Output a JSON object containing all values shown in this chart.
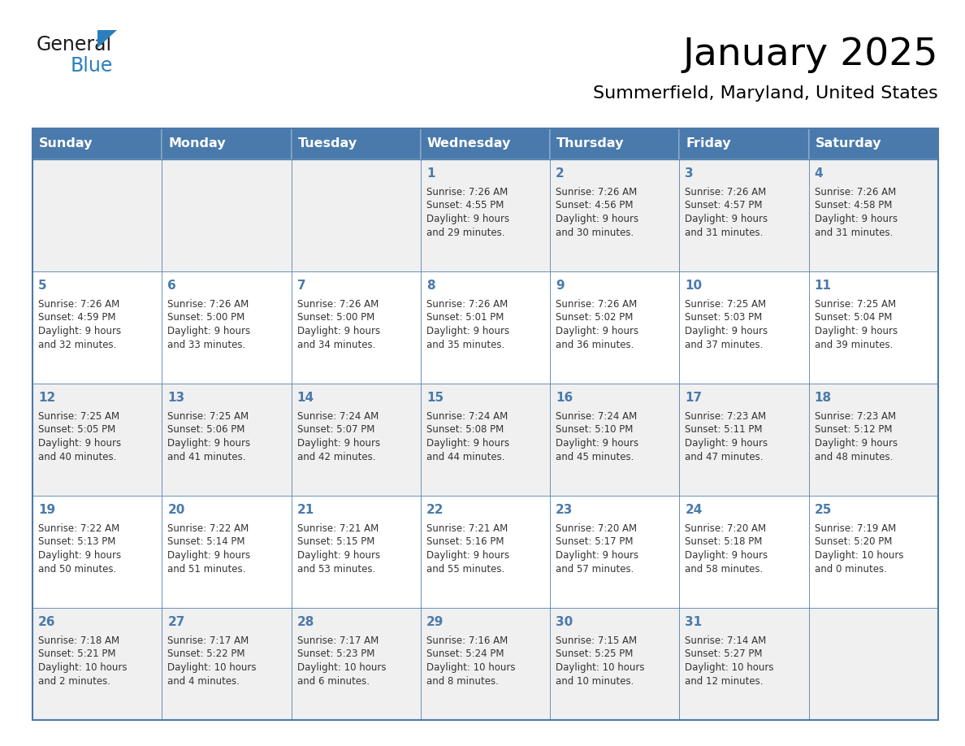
{
  "title": "January 2025",
  "subtitle": "Summerfield, Maryland, United States",
  "days_of_week": [
    "Sunday",
    "Monday",
    "Tuesday",
    "Wednesday",
    "Thursday",
    "Friday",
    "Saturday"
  ],
  "header_bg": "#4A7AAC",
  "header_text": "#FFFFFF",
  "odd_row_bg": "#F0F0F0",
  "even_row_bg": "#FFFFFF",
  "border_color": "#4A7AAC",
  "day_number_color": "#4A7AAC",
  "text_color": "#333333",
  "calendar_data": [
    [
      null,
      null,
      null,
      {
        "day": 1,
        "sunrise": "7:26 AM",
        "sunset": "4:55 PM",
        "daylight": "9 hours and 29 minutes."
      },
      {
        "day": 2,
        "sunrise": "7:26 AM",
        "sunset": "4:56 PM",
        "daylight": "9 hours and 30 minutes."
      },
      {
        "day": 3,
        "sunrise": "7:26 AM",
        "sunset": "4:57 PM",
        "daylight": "9 hours and 31 minutes."
      },
      {
        "day": 4,
        "sunrise": "7:26 AM",
        "sunset": "4:58 PM",
        "daylight": "9 hours and 31 minutes."
      }
    ],
    [
      {
        "day": 5,
        "sunrise": "7:26 AM",
        "sunset": "4:59 PM",
        "daylight": "9 hours and 32 minutes."
      },
      {
        "day": 6,
        "sunrise": "7:26 AM",
        "sunset": "5:00 PM",
        "daylight": "9 hours and 33 minutes."
      },
      {
        "day": 7,
        "sunrise": "7:26 AM",
        "sunset": "5:00 PM",
        "daylight": "9 hours and 34 minutes."
      },
      {
        "day": 8,
        "sunrise": "7:26 AM",
        "sunset": "5:01 PM",
        "daylight": "9 hours and 35 minutes."
      },
      {
        "day": 9,
        "sunrise": "7:26 AM",
        "sunset": "5:02 PM",
        "daylight": "9 hours and 36 minutes."
      },
      {
        "day": 10,
        "sunrise": "7:25 AM",
        "sunset": "5:03 PM",
        "daylight": "9 hours and 37 minutes."
      },
      {
        "day": 11,
        "sunrise": "7:25 AM",
        "sunset": "5:04 PM",
        "daylight": "9 hours and 39 minutes."
      }
    ],
    [
      {
        "day": 12,
        "sunrise": "7:25 AM",
        "sunset": "5:05 PM",
        "daylight": "9 hours and 40 minutes."
      },
      {
        "day": 13,
        "sunrise": "7:25 AM",
        "sunset": "5:06 PM",
        "daylight": "9 hours and 41 minutes."
      },
      {
        "day": 14,
        "sunrise": "7:24 AM",
        "sunset": "5:07 PM",
        "daylight": "9 hours and 42 minutes."
      },
      {
        "day": 15,
        "sunrise": "7:24 AM",
        "sunset": "5:08 PM",
        "daylight": "9 hours and 44 minutes."
      },
      {
        "day": 16,
        "sunrise": "7:24 AM",
        "sunset": "5:10 PM",
        "daylight": "9 hours and 45 minutes."
      },
      {
        "day": 17,
        "sunrise": "7:23 AM",
        "sunset": "5:11 PM",
        "daylight": "9 hours and 47 minutes."
      },
      {
        "day": 18,
        "sunrise": "7:23 AM",
        "sunset": "5:12 PM",
        "daylight": "9 hours and 48 minutes."
      }
    ],
    [
      {
        "day": 19,
        "sunrise": "7:22 AM",
        "sunset": "5:13 PM",
        "daylight": "9 hours and 50 minutes."
      },
      {
        "day": 20,
        "sunrise": "7:22 AM",
        "sunset": "5:14 PM",
        "daylight": "9 hours and 51 minutes."
      },
      {
        "day": 21,
        "sunrise": "7:21 AM",
        "sunset": "5:15 PM",
        "daylight": "9 hours and 53 minutes."
      },
      {
        "day": 22,
        "sunrise": "7:21 AM",
        "sunset": "5:16 PM",
        "daylight": "9 hours and 55 minutes."
      },
      {
        "day": 23,
        "sunrise": "7:20 AM",
        "sunset": "5:17 PM",
        "daylight": "9 hours and 57 minutes."
      },
      {
        "day": 24,
        "sunrise": "7:20 AM",
        "sunset": "5:18 PM",
        "daylight": "9 hours and 58 minutes."
      },
      {
        "day": 25,
        "sunrise": "7:19 AM",
        "sunset": "5:20 PM",
        "daylight": "10 hours and 0 minutes."
      }
    ],
    [
      {
        "day": 26,
        "sunrise": "7:18 AM",
        "sunset": "5:21 PM",
        "daylight": "10 hours and 2 minutes."
      },
      {
        "day": 27,
        "sunrise": "7:17 AM",
        "sunset": "5:22 PM",
        "daylight": "10 hours and 4 minutes."
      },
      {
        "day": 28,
        "sunrise": "7:17 AM",
        "sunset": "5:23 PM",
        "daylight": "10 hours and 6 minutes."
      },
      {
        "day": 29,
        "sunrise": "7:16 AM",
        "sunset": "5:24 PM",
        "daylight": "10 hours and 8 minutes."
      },
      {
        "day": 30,
        "sunrise": "7:15 AM",
        "sunset": "5:25 PM",
        "daylight": "10 hours and 10 minutes."
      },
      {
        "day": 31,
        "sunrise": "7:14 AM",
        "sunset": "5:27 PM",
        "daylight": "10 hours and 12 minutes."
      },
      null
    ]
  ],
  "logo_text1": "General",
  "logo_text2": "Blue",
  "logo_text1_color": "#1a1a1a",
  "logo_text2_color": "#2A7FBB",
  "logo_triangle_color": "#2A7FBB",
  "title_fontsize": 34,
  "subtitle_fontsize": 16,
  "header_fontsize": 11.5,
  "day_num_fontsize": 11,
  "cell_text_fontsize": 8.5,
  "logo_fontsize": 17
}
